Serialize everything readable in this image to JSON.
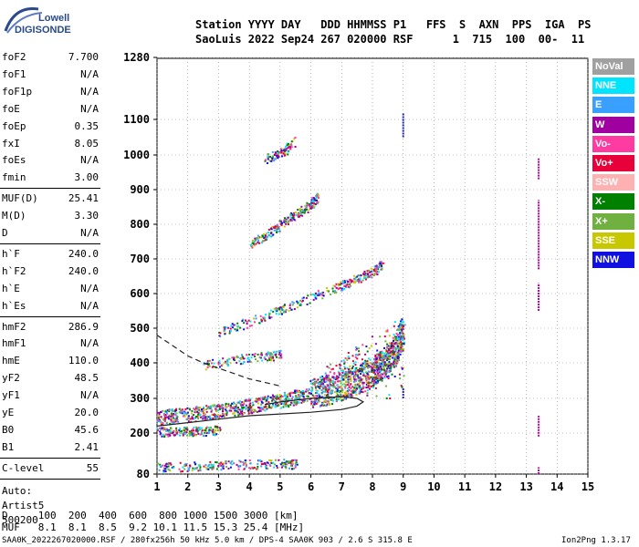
{
  "logo": {
    "line1": "Lowell",
    "line2": "DIGISONDE"
  },
  "header": {
    "line1": "Station YYYY DAY   DDD HHMMSS P1   FFS  S  AXN  PPS  IGA  PS",
    "line2": "SaoLuis 2022 Sep24 267 020000 RSF      1  715  100  00-  11"
  },
  "params": [
    {
      "name": "foF2",
      "value": "7.700"
    },
    {
      "name": "foF1",
      "value": "N/A"
    },
    {
      "name": "foF1p",
      "value": "N/A"
    },
    {
      "name": "foE",
      "value": "N/A"
    },
    {
      "name": "foEp",
      "value": "0.35"
    },
    {
      "name": "fxI",
      "value": "8.05"
    },
    {
      "name": "foEs",
      "value": "N/A"
    },
    {
      "name": "fmin",
      "value": "3.00"
    },
    {
      "name": "MUF(D)",
      "value": "25.41"
    },
    {
      "name": "M(D)",
      "value": "3.30"
    },
    {
      "name": "D",
      "value": "N/A"
    },
    {
      "name": "h`F",
      "value": "240.0"
    },
    {
      "name": "h`F2",
      "value": "240.0"
    },
    {
      "name": "h`E",
      "value": "N/A"
    },
    {
      "name": "h`Es",
      "value": "N/A"
    },
    {
      "name": "hmF2",
      "value": "286.9"
    },
    {
      "name": "hmF1",
      "value": "N/A"
    },
    {
      "name": "hmE",
      "value": "110.0"
    },
    {
      "name": "yF2",
      "value": "48.5"
    },
    {
      "name": "yF1",
      "value": "N/A"
    },
    {
      "name": "yE",
      "value": "20.0"
    },
    {
      "name": "B0",
      "value": "45.6"
    },
    {
      "name": "B1",
      "value": "2.41"
    },
    {
      "name": "C-level",
      "value": "55"
    }
  ],
  "footer_left": {
    "auto": "Auto:",
    "artist": "Artist5",
    "code": "500200"
  },
  "muf_table": {
    "line1": "D     100  200  400  600  800 1000 1500 3000 [km]",
    "line2": "MUF   8.1  8.1  8.5  9.2 10.1 11.5 15.3 25.4 [MHz]"
  },
  "bottom_line": {
    "left": "SAA0K_2022267020000.RSF / 280fx256h 50 kHz 5.0 km / DPS-4 SAA0K 903 / 2.6 S 315.8 E",
    "right": "Ion2Png 1.3.17"
  },
  "legend": [
    {
      "label": "NoVal",
      "color": "#a0a0a0"
    },
    {
      "label": "NNE",
      "color": "#00e5ff"
    },
    {
      "label": "E",
      "color": "#3aa0ff"
    },
    {
      "label": "W",
      "color": "#a000a0"
    },
    {
      "label": "Vo-",
      "color": "#ff3aa0"
    },
    {
      "label": "Vo+",
      "color": "#e8003a"
    },
    {
      "label": "SSW",
      "color": "#ffb0b0"
    },
    {
      "label": "X-",
      "color": "#008000"
    },
    {
      "label": "X+",
      "color": "#70b040"
    },
    {
      "label": "SSE",
      "color": "#c8c800"
    },
    {
      "label": "NNW",
      "color": "#1010e0"
    }
  ],
  "chart_data": {
    "type": "scatter",
    "xlim": [
      1,
      15
    ],
    "ylim": [
      80,
      1280
    ],
    "x_ticks": [
      "1",
      "2",
      "3",
      "4",
      "5",
      "6",
      "7",
      "8",
      "9",
      "10",
      "11",
      "12",
      "13",
      "14",
      "15"
    ],
    "y_ticks": [
      "80",
      "200",
      "300",
      "400",
      "500",
      "600",
      "700",
      "800",
      "900",
      "1000",
      "1100",
      "1280"
    ],
    "grid": true,
    "traces": [
      {
        "name": "F-trace",
        "x": [
          1.0,
          2.0,
          3.0,
          4.0,
          5.0,
          6.0,
          6.5,
          7.0,
          7.5,
          8.0,
          8.2,
          8.5,
          8.8,
          9.0
        ],
        "y": [
          245,
          255,
          265,
          280,
          295,
          315,
          325,
          340,
          355,
          375,
          390,
          410,
          450,
          500
        ]
      },
      {
        "name": "2F-trace",
        "x": [
          3.0,
          4.0,
          5.0,
          6.0,
          7.0,
          7.5,
          8.0,
          8.3
        ],
        "y": [
          490,
          520,
          555,
          590,
          625,
          645,
          665,
          685
        ]
      },
      {
        "name": "3F-trace",
        "x": [
          4.0,
          4.5,
          5.0,
          5.5,
          6.0,
          6.2
        ],
        "y": [
          740,
          770,
          800,
          830,
          860,
          880
        ]
      },
      {
        "name": "4F-trace",
        "x": [
          4.5,
          5.0,
          5.5
        ],
        "y": [
          990,
          1005,
          1040
        ]
      },
      {
        "name": "E-trace",
        "x": [
          1.0,
          2.0,
          3.0,
          4.0,
          5.0,
          5.5
        ],
        "y": [
          100,
          103,
          107,
          110,
          112,
          110
        ]
      },
      {
        "name": "Es-low",
        "x": [
          1.0,
          1.5,
          2.0,
          2.5,
          3.0
        ],
        "y": [
          205,
          205,
          207,
          207,
          210
        ]
      },
      {
        "name": "F-second",
        "x": [
          2.5,
          3.5,
          4.5,
          5.0
        ],
        "y": [
          395,
          410,
          420,
          425
        ]
      }
    ],
    "profile_solid": {
      "x": [
        1.0,
        2.0,
        3.0,
        4.0,
        5.0,
        6.0,
        7.0,
        7.5,
        7.7,
        7.5,
        7.0,
        6.0,
        5.0,
        4.5
      ],
      "y": [
        220,
        230,
        240,
        250,
        255,
        260,
        268,
        278,
        290,
        300,
        305,
        300,
        290,
        282
      ]
    },
    "profile_dashed": {
      "x": [
        1.0,
        1.5,
        2.0,
        2.5,
        3.0,
        3.5,
        4.0,
        4.5,
        5.0
      ],
      "y": [
        480,
        450,
        420,
        400,
        385,
        370,
        355,
        345,
        335
      ]
    },
    "vertical_marks": [
      {
        "x": 9.0,
        "y_from": 1050,
        "y_to": 1120
      },
      {
        "x": 9.0,
        "y_from": 300,
        "y_to": 330
      },
      {
        "x": 13.4,
        "y_from": 930,
        "y_to": 990
      },
      {
        "x": 13.4,
        "y_from": 670,
        "y_to": 870
      },
      {
        "x": 13.4,
        "y_from": 550,
        "y_to": 630
      },
      {
        "x": 13.4,
        "y_from": 190,
        "y_to": 250
      },
      {
        "x": 13.4,
        "y_from": 80,
        "y_to": 100
      }
    ]
  }
}
